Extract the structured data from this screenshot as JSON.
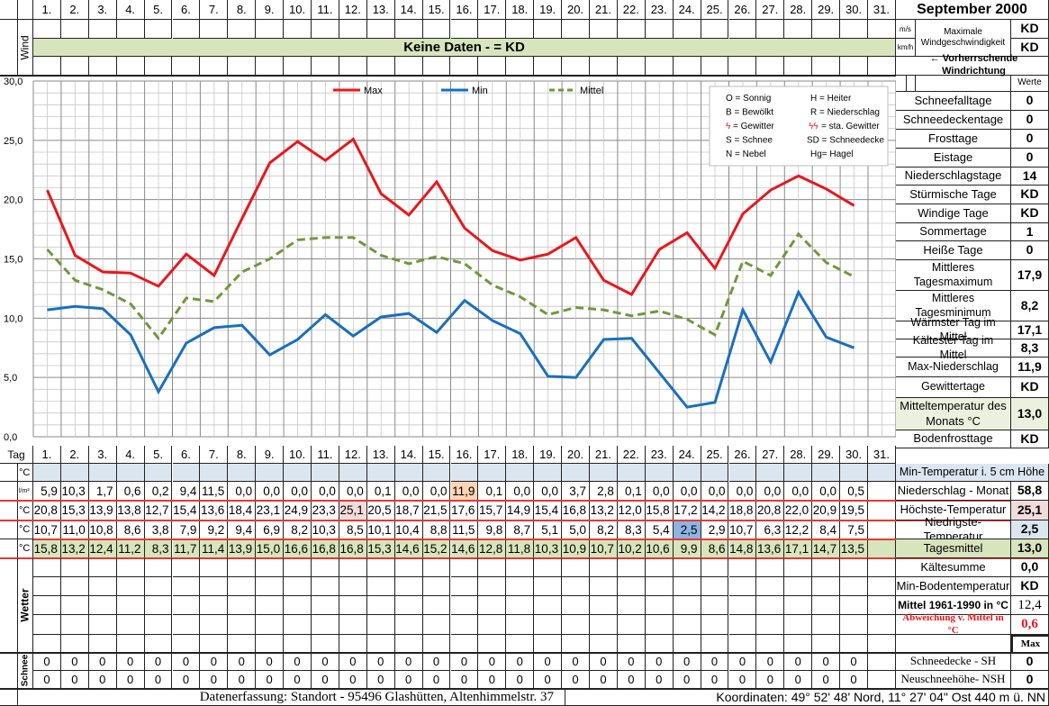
{
  "header": {
    "title": "September 2000",
    "days": [
      "1.",
      "2.",
      "3.",
      "4.",
      "5.",
      "6.",
      "7.",
      "8.",
      "9.",
      "10.",
      "11.",
      "12.",
      "13.",
      "14.",
      "15.",
      "16.",
      "17.",
      "18.",
      "19.",
      "20.",
      "21.",
      "22.",
      "23.",
      "24.",
      "25.",
      "26.",
      "27.",
      "28.",
      "29.",
      "30.",
      "31."
    ]
  },
  "wind": {
    "label": "Wind",
    "banner": "Keine Daten -  = KD",
    "unit_ms": "m/s",
    "unit_kmh": "km/h",
    "max_label": "Maximale Windgeschwindigkeit",
    "max_ms": "KD",
    "max_kmh": "KD",
    "direction_label": "← Vorherrschende Windrichtung"
  },
  "legend": {
    "max": "Max",
    "min": "Min",
    "mittel": "Mittel",
    "codes_left": [
      "O = Sonnig",
      "B = Bewölkt",
      "= Gewitter",
      "S = Schnee",
      "N = Nebel"
    ],
    "codes_right": [
      "H = Heiter",
      "R = Niederschlag",
      "= sta. Gewitter",
      "SD = Schneedecke",
      "Hg= Hagel"
    ]
  },
  "chart_data": {
    "type": "line",
    "title": "",
    "xlabel": "Tag",
    "ylabel": "°C",
    "ylim": [
      0,
      30
    ],
    "yticks": [
      "30,0",
      "25,0",
      "20,0",
      "15,0",
      "10,0",
      "5,0",
      "0,0"
    ],
    "grid": true,
    "legend_position": "top",
    "categories": [
      1,
      2,
      3,
      4,
      5,
      6,
      7,
      8,
      9,
      10,
      11,
      12,
      13,
      14,
      15,
      16,
      17,
      18,
      19,
      20,
      21,
      22,
      23,
      24,
      25,
      26,
      27,
      28,
      29,
      30
    ],
    "series": [
      {
        "name": "Max",
        "color": "#e8181c",
        "style": "solid",
        "values": [
          20.8,
          15.3,
          13.9,
          13.8,
          12.7,
          15.4,
          13.6,
          18.4,
          23.1,
          24.9,
          23.3,
          25.1,
          20.5,
          18.7,
          21.5,
          17.6,
          15.7,
          14.9,
          15.4,
          16.8,
          13.2,
          12.0,
          15.8,
          17.2,
          14.2,
          18.8,
          20.8,
          22.0,
          20.9,
          19.5
        ]
      },
      {
        "name": "Min",
        "color": "#1a6fbf",
        "style": "solid",
        "values": [
          10.7,
          11.0,
          10.8,
          8.6,
          3.8,
          7.9,
          9.2,
          9.4,
          6.9,
          8.2,
          10.3,
          8.5,
          10.1,
          10.4,
          8.8,
          11.5,
          9.8,
          8.7,
          5.1,
          5.0,
          8.2,
          8.3,
          5.4,
          2.5,
          2.9,
          10.7,
          6.3,
          12.2,
          8.4,
          7.5
        ]
      },
      {
        "name": "Mittel",
        "color": "#6e9a3a",
        "style": "dashed",
        "values": [
          15.8,
          13.2,
          12.4,
          11.2,
          8.3,
          11.7,
          11.4,
          13.9,
          15.0,
          16.6,
          16.8,
          16.8,
          15.3,
          14.6,
          15.2,
          14.6,
          12.8,
          11.8,
          10.3,
          10.9,
          10.7,
          10.2,
          10.6,
          9.9,
          8.6,
          14.8,
          13.6,
          17.1,
          14.7,
          13.5
        ]
      }
    ]
  },
  "table": {
    "tag_label": "Tag",
    "rows": [
      {
        "unit": "°C",
        "kind": "blue",
        "values": []
      },
      {
        "unit": "l/m²",
        "kind": "plain",
        "values": [
          "5,9",
          "10,3",
          "1,7",
          "0,6",
          "0,2",
          "9,4",
          "11,5",
          "0,0",
          "0,0",
          "0,0",
          "0,0",
          "0,0",
          "0,1",
          "0,0",
          "0,0",
          "11,9",
          "0,1",
          "0,0",
          "0,0",
          "3,7",
          "2,8",
          "0,1",
          "0,0",
          "0,0",
          "0,0",
          "0,0",
          "0,0",
          "0,0",
          "0,0",
          "0,5"
        ]
      },
      {
        "unit": "°C",
        "kind": "plain",
        "values": [
          "20,8",
          "15,3",
          "13,9",
          "13,8",
          "12,7",
          "15,4",
          "13,6",
          "18,4",
          "23,1",
          "24,9",
          "23,3",
          "25,1",
          "20,5",
          "18,7",
          "21,5",
          "17,6",
          "15,7",
          "14,9",
          "15,4",
          "16,8",
          "13,2",
          "12,0",
          "15,8",
          "17,2",
          "14,2",
          "18,8",
          "20,8",
          "22,0",
          "20,9",
          "19,5"
        ]
      },
      {
        "unit": "°C",
        "kind": "plain",
        "values": [
          "10,7",
          "11,0",
          "10,8",
          "8,6",
          "3,8",
          "7,9",
          "9,2",
          "9,4",
          "6,9",
          "8,2",
          "10,3",
          "8,5",
          "10,1",
          "10,4",
          "8,8",
          "11,5",
          "9,8",
          "8,7",
          "5,1",
          "5,0",
          "8,2",
          "8,3",
          "5,4",
          "2,5",
          "2,9",
          "10,7",
          "6,3",
          "12,2",
          "8,4",
          "7,5"
        ]
      },
      {
        "unit": "°C",
        "kind": "green",
        "values": [
          "15,8",
          "13,2",
          "12,4",
          "11,2",
          "8,3",
          "11,7",
          "11,4",
          "13,9",
          "15,0",
          "16,6",
          "16,8",
          "16,8",
          "15,3",
          "14,6",
          "15,2",
          "14,6",
          "12,8",
          "11,8",
          "10,3",
          "10,9",
          "10,7",
          "10,2",
          "10,6",
          "9,9",
          "8,6",
          "14,8",
          "13,6",
          "17,1",
          "14,7",
          "13,5"
        ]
      }
    ],
    "highlights": {
      "precip_max_day": 16,
      "tmax_day": 12,
      "tmin_day": 24
    },
    "highlight_colors": {
      "precip": "#fcd5b4",
      "tmax": "#f2dcdb",
      "tmin": "#8db4e2"
    }
  },
  "weather": {
    "label": "Wetter"
  },
  "snow": {
    "label": "Schnee",
    "sh": [
      "0",
      "0",
      "0",
      "0",
      "0",
      "0",
      "0",
      "0",
      "0",
      "0",
      "0",
      "0",
      "0",
      "0",
      "0",
      "0",
      "0",
      "0",
      "0",
      "0",
      "0",
      "0",
      "0",
      "0",
      "0",
      "0",
      "0",
      "0",
      "0",
      "0"
    ],
    "nsh": [
      "0",
      "0",
      "0",
      "0",
      "0",
      "0",
      "0",
      "0",
      "0",
      "0",
      "0",
      "0",
      "0",
      "0",
      "0",
      "0",
      "0",
      "0",
      "0",
      "0",
      "0",
      "0",
      "0",
      "0",
      "0",
      "0",
      "0",
      "0",
      "0",
      "0"
    ]
  },
  "right_panel": {
    "werte_label": "Werte",
    "stats": [
      {
        "label": "Schneefalltage",
        "value": "0"
      },
      {
        "label": "Schneedeckentage",
        "value": "0"
      },
      {
        "label": "Frosttage",
        "value": "0"
      },
      {
        "label": "Eistage",
        "value": "0"
      },
      {
        "label": "Niederschlagstage",
        "value": "14"
      },
      {
        "label": "Stürmische Tage",
        "value": "KD"
      },
      {
        "label": "Windige Tage",
        "value": "KD"
      },
      {
        "label": "Sommertage",
        "value": "1"
      },
      {
        "label": "Heiße Tage",
        "value": "0"
      },
      {
        "label": "Mittleres Tagesmaximum",
        "value": "17,9"
      },
      {
        "label": "Mittleres Tagesminimum",
        "value": "8,2"
      },
      {
        "label": "Wärmster Tag im Mittel",
        "value": "17,1"
      },
      {
        "label": "Kältester Tag im Mittel",
        "value": "8,3"
      },
      {
        "label": "Max-Niederschlag",
        "value": "11,9"
      },
      {
        "label": "Gewittertage",
        "value": "KD"
      },
      {
        "label": "Mitteltemperatur des Monats °C",
        "value": "13,0"
      },
      {
        "label": "Bodenfrosttage",
        "value": "KD"
      }
    ],
    "min_temp_5cm": "Min-Temperatur i. 5 cm Höhe",
    "summary": [
      {
        "label": "Niederschlag - Monat",
        "value": "58,8"
      },
      {
        "label": "Höchste-Temperatur",
        "value": "25,1"
      },
      {
        "label": "Niedrigste-Temperatur",
        "value": "2,5"
      },
      {
        "label": "Tagesmittel",
        "value": "13,0"
      },
      {
        "label": "Kältesumme",
        "value": "0,0"
      },
      {
        "label": "Min-Bodentemperatur",
        "value": "KD"
      },
      {
        "label": "Mittel 1961-1990 in °C",
        "value": "12,4"
      },
      {
        "label": "Abweichung v. Mittel in °C",
        "value": "0,6"
      }
    ],
    "max_label": "Max",
    "snow_sh_label": "Schneedecke -   SH",
    "snow_sh_value": "0",
    "snow_nsh_label": "Neuschneehöhe- NSH",
    "snow_nsh_value": "0"
  },
  "footer": {
    "location": "Datenerfassung:  Standort -  95496  Glashütten, Altenhimmelstr. 37",
    "coords": "Koordinaten:  49° 52' 48' Nord,   11° 27' 04\" Ost   440 m ü. NN"
  }
}
